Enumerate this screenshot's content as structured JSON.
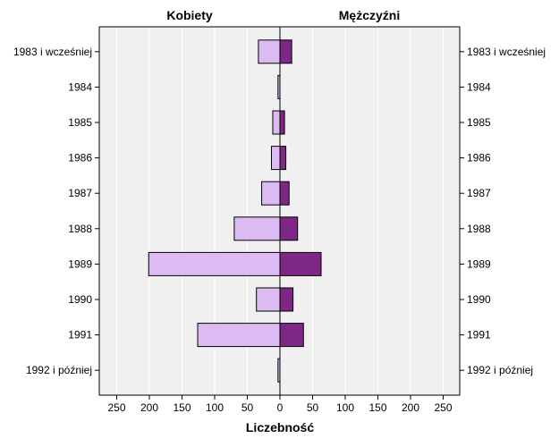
{
  "chart_data": {
    "type": "bar",
    "orientation": "horizontal-population-pyramid",
    "categories": [
      "1983 i wcześniej",
      "1984",
      "1985",
      "1986",
      "1987",
      "1988",
      "1989",
      "1990",
      "1991",
      "1992 i później"
    ],
    "series": [
      {
        "name": "Kobiety",
        "color": "#dcbbf3",
        "side": "left",
        "values": [
          33,
          3,
          11,
          13,
          28,
          70,
          201,
          36,
          126,
          3
        ]
      },
      {
        "name": "Mężczyźni",
        "color": "#7e2785",
        "side": "right",
        "values": [
          18,
          0,
          7,
          9,
          14,
          27,
          63,
          20,
          36,
          0
        ]
      }
    ],
    "xlabel": "Liczebność",
    "xlim": [
      0,
      250
    ],
    "xticks": [
      0,
      50,
      100,
      150,
      200,
      250
    ],
    "grid": true
  }
}
